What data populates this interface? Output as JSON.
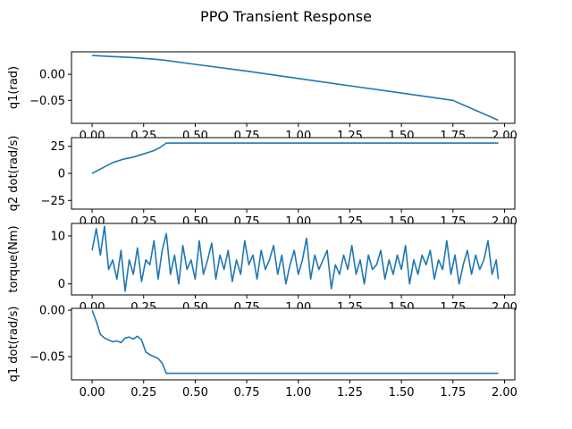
{
  "figure": {
    "title": "PPO Transient Response",
    "line_color": "#1f77b4"
  },
  "chart_data": [
    {
      "type": "line",
      "ylabel": "q1(rad)",
      "xlim": [
        -0.1,
        2.05
      ],
      "ylim": [
        -0.094,
        0.043
      ],
      "xticks": [
        0.0,
        0.25,
        0.5,
        0.75,
        1.0,
        1.25,
        1.5,
        1.75,
        2.0
      ],
      "xtick_labels": [
        "0.00",
        "0.25",
        "0.50",
        "0.75",
        "1.00",
        "1.25",
        "1.50",
        "1.75",
        "2.00"
      ],
      "yticks": [
        0.0,
        -0.05
      ],
      "ytick_labels": [
        "0.00",
        "−0.05"
      ],
      "series": [
        {
          "x": [
            0.0,
            0.1,
            0.2,
            0.3,
            0.35,
            0.5,
            0.75,
            1.0,
            1.25,
            1.5,
            1.75,
            1.97
          ],
          "y": [
            0.036,
            0.034,
            0.032,
            0.029,
            0.027,
            0.019,
            0.006,
            -0.008,
            -0.022,
            -0.036,
            -0.05,
            -0.088
          ]
        }
      ]
    },
    {
      "type": "line",
      "ylabel": "q2 dot(rad/s)",
      "xlim": [
        -0.1,
        2.05
      ],
      "ylim": [
        -33,
        33
      ],
      "xticks": [
        0.0,
        0.25,
        0.5,
        0.75,
        1.0,
        1.25,
        1.5,
        1.75,
        2.0
      ],
      "xtick_labels": [
        "0.00",
        "0.25",
        "0.50",
        "0.75",
        "1.00",
        "1.25",
        "1.50",
        "1.75",
        "2.00"
      ],
      "yticks": [
        25,
        0,
        -25
      ],
      "ytick_labels": [
        "25",
        "0",
        "−25"
      ],
      "series": [
        {
          "x": [
            0.0,
            0.03,
            0.06,
            0.1,
            0.15,
            0.2,
            0.25,
            0.3,
            0.33,
            0.36,
            0.5,
            1.0,
            1.5,
            1.97
          ],
          "y": [
            0,
            3,
            6,
            10,
            13,
            15,
            18,
            21,
            24,
            28,
            28,
            28,
            28,
            28
          ]
        }
      ]
    },
    {
      "type": "line",
      "ylabel": "torque(Nm)",
      "xlim": [
        -0.1,
        2.05
      ],
      "ylim": [
        -2.3,
        12.6
      ],
      "xticks": [
        0.0,
        0.25,
        0.5,
        0.75,
        1.0,
        1.25,
        1.5,
        1.75,
        2.0
      ],
      "xtick_labels": [
        "0.00",
        "0.25",
        "0.50",
        "0.75",
        "1.00",
        "1.25",
        "1.50",
        "1.75",
        "2.00"
      ],
      "yticks": [
        10,
        0
      ],
      "ytick_labels": [
        "10",
        "0"
      ],
      "series": [
        {
          "x": [
            0.0,
            0.02,
            0.04,
            0.06,
            0.08,
            0.1,
            0.12,
            0.14,
            0.16,
            0.18,
            0.2,
            0.22,
            0.24,
            0.26,
            0.28,
            0.3,
            0.32,
            0.34,
            0.36,
            0.38,
            0.4,
            0.42,
            0.44,
            0.46,
            0.48,
            0.5,
            0.52,
            0.54,
            0.56,
            0.58,
            0.6,
            0.62,
            0.64,
            0.66,
            0.68,
            0.7,
            0.72,
            0.74,
            0.76,
            0.78,
            0.8,
            0.82,
            0.84,
            0.86,
            0.88,
            0.9,
            0.92,
            0.94,
            0.96,
            0.98,
            1.0,
            1.02,
            1.04,
            1.06,
            1.08,
            1.1,
            1.12,
            1.14,
            1.16,
            1.18,
            1.2,
            1.22,
            1.24,
            1.26,
            1.28,
            1.3,
            1.32,
            1.34,
            1.36,
            1.38,
            1.4,
            1.42,
            1.44,
            1.46,
            1.48,
            1.5,
            1.52,
            1.54,
            1.56,
            1.58,
            1.6,
            1.62,
            1.64,
            1.66,
            1.68,
            1.7,
            1.72,
            1.74,
            1.76,
            1.78,
            1.8,
            1.82,
            1.84,
            1.86,
            1.88,
            1.9,
            1.92,
            1.94,
            1.96,
            1.97
          ],
          "y": [
            7,
            11.5,
            6,
            12,
            3,
            5,
            1,
            7,
            -1.5,
            5,
            2,
            7.5,
            0.5,
            5,
            4,
            9,
            1,
            7,
            10.5,
            2,
            6,
            0,
            8,
            3,
            5,
            1,
            9,
            2,
            5,
            8.5,
            1,
            6,
            3,
            7,
            0.5,
            5,
            2,
            9,
            4,
            6,
            1,
            7,
            3,
            5,
            8,
            2,
            6,
            0,
            4,
            7,
            2,
            5,
            9.5,
            1,
            6,
            3,
            5,
            7,
            -1,
            4,
            2,
            6,
            3,
            8,
            2,
            5,
            0,
            6,
            3,
            4,
            7,
            1,
            5,
            2,
            6,
            3,
            8,
            0,
            5,
            2,
            6,
            4,
            7,
            1,
            5,
            3,
            9,
            2,
            6,
            0,
            4,
            7,
            2,
            6,
            3,
            5,
            9,
            2,
            5,
            1
          ]
        }
      ]
    },
    {
      "type": "line",
      "ylabel": "q1 dot(rad/s)",
      "xlim": [
        -0.1,
        2.05
      ],
      "ylim": [
        -0.075,
        0.002
      ],
      "xticks": [
        0.0,
        0.25,
        0.5,
        0.75,
        1.0,
        1.25,
        1.5,
        1.75,
        2.0
      ],
      "xtick_labels": [
        "0.00",
        "0.25",
        "0.50",
        "0.75",
        "1.00",
        "1.25",
        "1.50",
        "1.75",
        "2.00"
      ],
      "yticks": [
        0.0,
        -0.05
      ],
      "ytick_labels": [
        "0.00",
        "−0.05"
      ],
      "series": [
        {
          "x": [
            0.0,
            0.02,
            0.04,
            0.06,
            0.08,
            0.1,
            0.12,
            0.14,
            0.16,
            0.18,
            0.2,
            0.22,
            0.24,
            0.26,
            0.28,
            0.3,
            0.32,
            0.34,
            0.36,
            0.5,
            1.0,
            1.5,
            1.97
          ],
          "y": [
            0.0,
            -0.012,
            -0.026,
            -0.03,
            -0.032,
            -0.034,
            -0.033,
            -0.035,
            -0.03,
            -0.029,
            -0.031,
            -0.028,
            -0.032,
            -0.045,
            -0.048,
            -0.05,
            -0.052,
            -0.057,
            -0.068,
            -0.068,
            -0.068,
            -0.068,
            -0.068
          ]
        }
      ]
    }
  ]
}
